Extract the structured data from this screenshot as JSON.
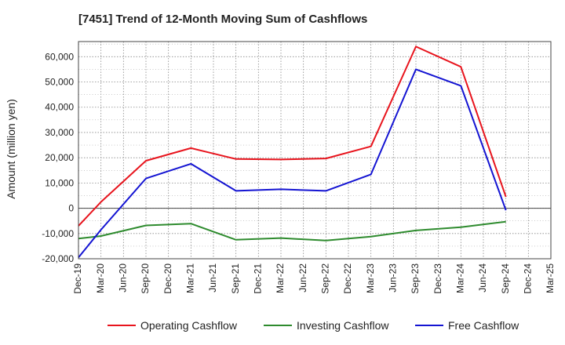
{
  "chart_data": {
    "type": "line",
    "title": "[7451]  Trend of 12-Month Moving Sum of Cashflows",
    "xlabel": "",
    "ylabel": "Amount (million yen)",
    "ylim": [
      -20000,
      66000
    ],
    "yticks": [
      -20000,
      -10000,
      0,
      10000,
      20000,
      30000,
      40000,
      50000,
      60000
    ],
    "ytick_labels": [
      "-20,000",
      "-10,000",
      "0",
      "10,000",
      "20,000",
      "30,000",
      "40,000",
      "50,000",
      "60,000"
    ],
    "categories": [
      "Dec-19",
      "Mar-20",
      "Jun-20",
      "Sep-20",
      "Dec-20",
      "Mar-21",
      "Jun-21",
      "Sep-21",
      "Dec-21",
      "Mar-22",
      "Jun-22",
      "Sep-22",
      "Dec-22",
      "Mar-23",
      "Jun-23",
      "Sep-23",
      "Dec-23",
      "Mar-24",
      "Jun-24",
      "Sep-24",
      "Dec-24",
      "Mar-25"
    ],
    "grid": true,
    "legend_position": "bottom",
    "series": [
      {
        "name": "Operating Cashflow",
        "color": "#e8141d",
        "values": [
          -7000,
          2500,
          null,
          18800,
          null,
          23800,
          null,
          19500,
          null,
          19300,
          null,
          19700,
          null,
          24500,
          null,
          64000,
          null,
          56000,
          null,
          4500,
          null,
          null
        ]
      },
      {
        "name": "Investing Cashflow",
        "color": "#2e8b2e",
        "values": [
          -12000,
          -11000,
          null,
          -6800,
          null,
          -6100,
          null,
          -12500,
          null,
          -11800,
          null,
          -12800,
          null,
          -11200,
          null,
          -8800,
          null,
          -7500,
          null,
          -5300,
          null,
          null
        ]
      },
      {
        "name": "Free Cashflow",
        "color": "#1414d2",
        "values": [
          -19500,
          -8500,
          null,
          11800,
          null,
          17600,
          null,
          6900,
          null,
          7500,
          null,
          6900,
          null,
          13400,
          null,
          55000,
          null,
          48500,
          null,
          -800,
          null,
          null
        ]
      }
    ]
  }
}
